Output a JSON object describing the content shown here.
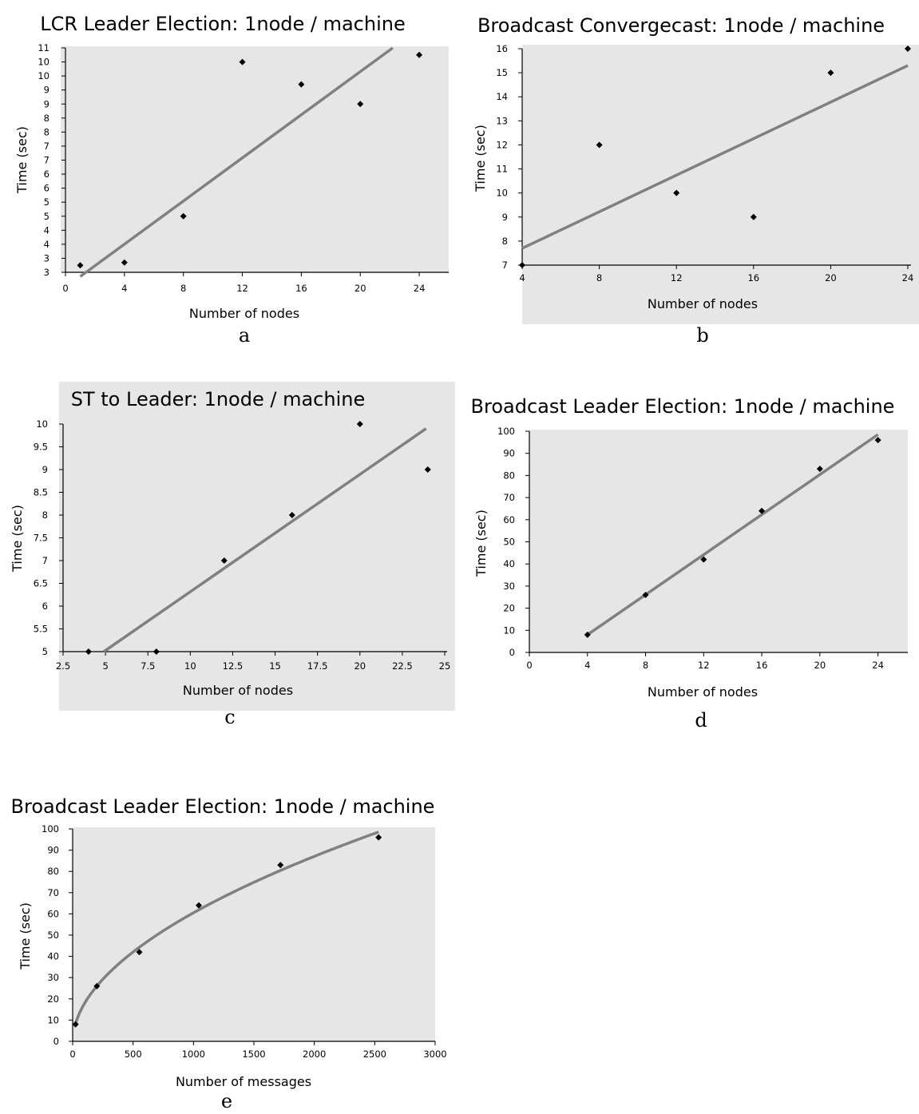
{
  "chart_data": [
    {
      "id": "a",
      "type": "scatter",
      "title": "LCR Leader Election: 1node / machine",
      "xlabel": "Number of nodes",
      "ylabel": "Time (sec)",
      "panel_label": "a",
      "xlim": [
        0,
        26
      ],
      "ylim": [
        3,
        11
      ],
      "x_ticks": [
        0,
        4,
        8,
        12,
        16,
        20,
        24
      ],
      "x_tick_labels": [
        "0",
        "4",
        "8",
        "12",
        "16",
        "20",
        "24"
      ],
      "y_ticks": [
        3,
        3.5,
        4,
        4.5,
        5,
        5.5,
        6,
        6.5,
        7,
        7.5,
        8,
        8.5,
        9,
        9.5,
        10,
        10.5,
        11
      ],
      "y_tick_labels": [
        "3",
        "3",
        "4",
        "4",
        "5",
        "5",
        "6",
        "6",
        "7",
        "7",
        "8",
        "8",
        "9",
        "9",
        "10",
        "10",
        "11"
      ],
      "grid": false,
      "points": [
        [
          1,
          3.25
        ],
        [
          4,
          3.35
        ],
        [
          8,
          5
        ],
        [
          12,
          10.5
        ],
        [
          16,
          9.7
        ],
        [
          20,
          9
        ],
        [
          24,
          10.75
        ]
      ],
      "trendline": [
        [
          1,
          2.85
        ],
        [
          22.2,
          11
        ]
      ]
    },
    {
      "id": "b",
      "type": "scatter",
      "title": "Broadcast Convergecast: 1node / machine",
      "xlabel": "Number of nodes",
      "ylabel": "Time (sec)",
      "panel_label": "b",
      "xlim": [
        4,
        24
      ],
      "ylim": [
        7,
        16
      ],
      "x_ticks": [
        4,
        8,
        12,
        16,
        20,
        24
      ],
      "x_tick_labels": [
        "4",
        "8",
        "12",
        "16",
        "20",
        "24"
      ],
      "y_ticks": [
        7,
        8,
        9,
        10,
        11,
        12,
        13,
        14,
        15,
        16
      ],
      "y_tick_labels": [
        "7",
        "8",
        "9",
        "10",
        "11",
        "12",
        "13",
        "14",
        "15",
        "16"
      ],
      "grid": false,
      "points": [
        [
          4,
          7
        ],
        [
          8,
          12
        ],
        [
          12,
          10
        ],
        [
          16,
          9
        ],
        [
          20,
          15
        ],
        [
          24,
          16
        ]
      ],
      "trendline": [
        [
          4,
          7.7
        ],
        [
          24,
          15.3
        ]
      ]
    },
    {
      "id": "c",
      "type": "scatter",
      "title": "ST to Leader: 1node / machine",
      "xlabel": "Number of nodes",
      "ylabel": "Time (sec)",
      "panel_label": "c",
      "xlim": [
        2.5,
        25
      ],
      "ylim": [
        5,
        10
      ],
      "x_ticks": [
        2.5,
        5,
        7.5,
        10,
        12.5,
        15,
        17.5,
        20,
        22.5,
        25
      ],
      "x_tick_labels": [
        "2.5",
        "5",
        "7.5",
        "10",
        "12.5",
        "15",
        "17.5",
        "20",
        "22.5",
        "25"
      ],
      "y_ticks": [
        5,
        5.5,
        6,
        6.5,
        7,
        7.5,
        8,
        8.5,
        9,
        9.5,
        10
      ],
      "y_tick_labels": [
        "5",
        "5.5",
        "6",
        "6.5",
        "7",
        "7.5",
        "8",
        "8.5",
        "9",
        "9.5",
        "10"
      ],
      "grid": false,
      "points": [
        [
          4,
          5
        ],
        [
          8,
          5
        ],
        [
          12,
          7
        ],
        [
          16,
          8
        ],
        [
          20,
          10
        ],
        [
          24,
          9
        ]
      ],
      "trendline": [
        [
          4.9,
          5
        ],
        [
          23.9,
          9.9
        ]
      ]
    },
    {
      "id": "d",
      "type": "scatter",
      "title": "Broadcast Leader Election: 1node / machine",
      "xlabel": "Number of nodes",
      "ylabel": "Time (sec)",
      "panel_label": "d",
      "xlim": [
        0,
        26
      ],
      "ylim": [
        0,
        100
      ],
      "x_ticks": [
        0,
        4,
        8,
        12,
        16,
        20,
        24
      ],
      "x_tick_labels": [
        "0",
        "4",
        "8",
        "12",
        "16",
        "20",
        "24"
      ],
      "y_ticks": [
        0,
        10,
        20,
        30,
        40,
        50,
        60,
        70,
        80,
        90,
        100
      ],
      "y_tick_labels": [
        "0",
        "10",
        "20",
        "30",
        "40",
        "50",
        "60",
        "70",
        "80",
        "90",
        "100"
      ],
      "grid": false,
      "points": [
        [
          4,
          8
        ],
        [
          8,
          26
        ],
        [
          12,
          42
        ],
        [
          16,
          64
        ],
        [
          20,
          83
        ],
        [
          24,
          96
        ]
      ],
      "trendline": [
        [
          4,
          8
        ],
        [
          24,
          98.5
        ]
      ]
    },
    {
      "id": "e",
      "type": "scatter",
      "title": "Broadcast Leader Election: 1node / machine",
      "xlabel": "Number of messages",
      "ylabel": "Time (sec)",
      "panel_label": "e",
      "xlim": [
        0,
        3000
      ],
      "ylim": [
        0,
        100
      ],
      "x_ticks": [
        0,
        500,
        1000,
        1500,
        2000,
        2500,
        3000
      ],
      "x_tick_labels": [
        "0",
        "500",
        "1000",
        "1500",
        "2000",
        "2500",
        "3000"
      ],
      "y_ticks": [
        0,
        10,
        20,
        30,
        40,
        50,
        60,
        70,
        80,
        90,
        100
      ],
      "y_tick_labels": [
        "0",
        "10",
        "20",
        "30",
        "40",
        "50",
        "60",
        "70",
        "80",
        "90",
        "100"
      ],
      "grid": false,
      "points": [
        [
          24,
          8
        ],
        [
          200,
          26
        ],
        [
          552,
          42
        ],
        [
          1044,
          64
        ],
        [
          1720,
          83
        ],
        [
          2532,
          96
        ]
      ],
      "trendcurve": {
        "kind": "power",
        "coef": 1.61,
        "exp": 0.525,
        "x_range": [
          24,
          2532
        ]
      }
    }
  ]
}
